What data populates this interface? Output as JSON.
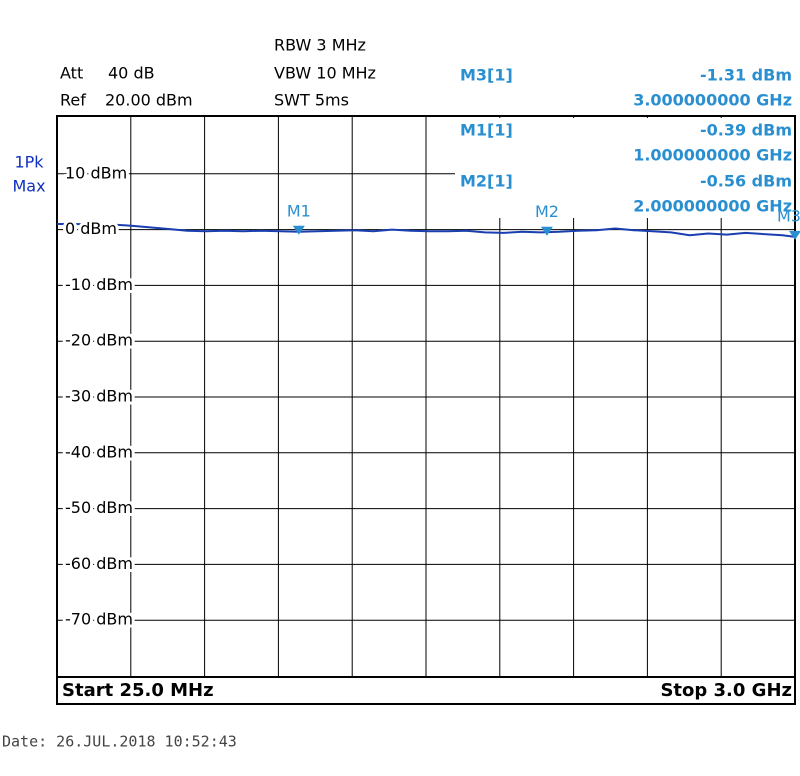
{
  "chart_data": {
    "type": "line",
    "header": {
      "att": "Att",
      "att_value": "40 dB",
      "ref": "Ref",
      "ref_value": "20.00 dBm",
      "rbw": "RBW 3 MHz",
      "vbw": "VBW 10 MHz",
      "swt": "SWT 5ms"
    },
    "trace_label": [
      "1Pk",
      "Max"
    ],
    "start_label": "Start 25.0 MHz",
    "stop_label": "Stop 3.0 GHz",
    "date": "Date: 26.JUL.2018  10:52:43",
    "color": "#1a3fb0",
    "marker_color": "#2a8fd0",
    "xlim": [
      25,
      3000
    ],
    "ylim": [
      20,
      -80
    ],
    "yticks": [
      {
        "value": 10,
        "label": "10 dBm"
      },
      {
        "value": 0,
        "label": "0 dBm"
      },
      {
        "value": -10,
        "label": "-10 dBm"
      },
      {
        "value": -20,
        "label": "-20 dBm"
      },
      {
        "value": -30,
        "label": "-30 dBm"
      },
      {
        "value": -40,
        "label": "-40 dBm"
      },
      {
        "value": -50,
        "label": "-50 dBm"
      },
      {
        "value": -60,
        "label": "-60 dBm"
      },
      {
        "value": -70,
        "label": "-70 dBm"
      }
    ],
    "grid": true,
    "x": [
      25,
      100,
      175,
      250,
      325,
      400,
      475,
      550,
      625,
      700,
      775,
      850,
      925,
      1000,
      1075,
      1150,
      1225,
      1300,
      1375,
      1450,
      1525,
      1600,
      1675,
      1750,
      1825,
      1900,
      1975,
      2050,
      2125,
      2200,
      2275,
      2350,
      2425,
      2500,
      2575,
      2650,
      2725,
      2800,
      2875,
      2950,
      3000
    ],
    "values": [
      1.0,
      1.0,
      0.9,
      0.9,
      0.7,
      0.4,
      0.1,
      -0.2,
      -0.3,
      -0.2,
      -0.3,
      -0.2,
      -0.3,
      -0.39,
      -0.3,
      -0.2,
      -0.1,
      -0.3,
      0.0,
      -0.2,
      -0.3,
      -0.3,
      -0.2,
      -0.5,
      -0.6,
      -0.4,
      -0.5,
      -0.4,
      -0.2,
      -0.1,
      0.2,
      -0.1,
      -0.3,
      -0.5,
      -1.0,
      -0.7,
      -0.9,
      -0.6,
      -0.8,
      -1.0,
      -1.31
    ],
    "markers": [
      {
        "name": "M3",
        "readout": "M3[1]",
        "level": -1.31,
        "level_label": "-1.31 dBm",
        "freq": 3000,
        "freq_label": "3.000000000 GHz"
      },
      {
        "name": "M1",
        "readout": "M1[1]",
        "level": -0.39,
        "level_label": "-0.39 dBm",
        "freq": 1000,
        "freq_label": "1.000000000 GHz"
      },
      {
        "name": "M2",
        "readout": "M2[1]",
        "level": -0.56,
        "level_label": "-0.56 dBm",
        "freq": 2000,
        "freq_label": "2.000000000 GHz"
      }
    ]
  }
}
